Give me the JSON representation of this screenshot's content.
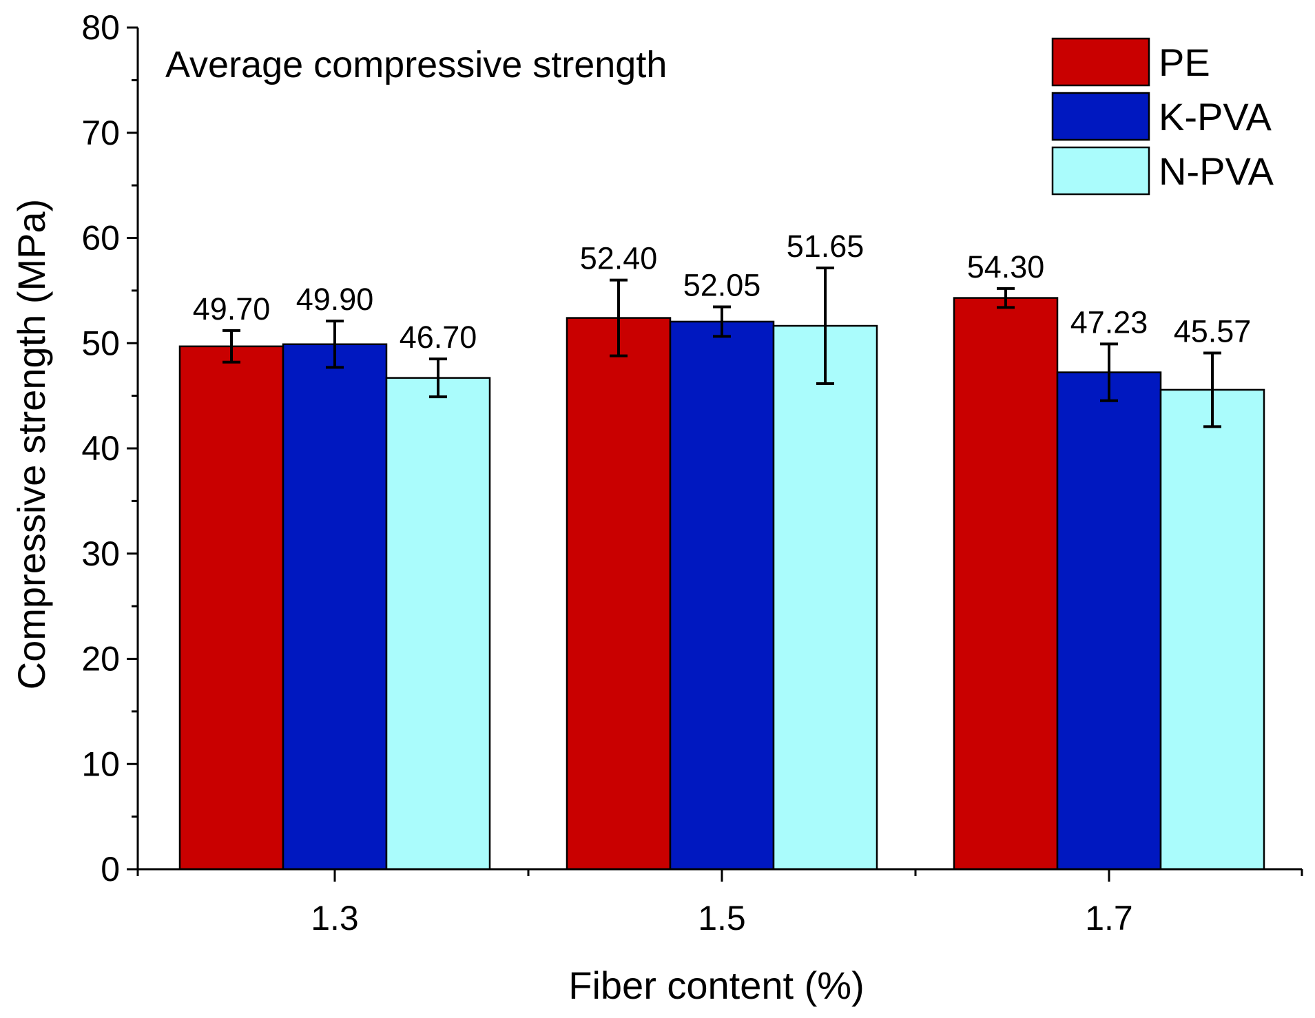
{
  "chart_data": {
    "type": "bar",
    "title": "Average compressive strength",
    "xlabel": "Fiber content (%)",
    "ylabel": "Compressive strength (MPa)",
    "categories": [
      "1.3",
      "1.5",
      "1.7"
    ],
    "ylim": [
      0,
      80
    ],
    "yticks": [
      0,
      10,
      20,
      30,
      40,
      50,
      60,
      70,
      80
    ],
    "yticks_labels": [
      "0",
      "10",
      "20",
      "30",
      "40",
      "50",
      "60",
      "70",
      "80"
    ],
    "grid": false,
    "legend_position": "top-right",
    "series": [
      {
        "name": "PE",
        "color": "#c90000",
        "values": [
          49.7,
          52.4,
          54.3
        ],
        "labels": [
          "49.70",
          "52.40",
          "54.30"
        ],
        "errors": [
          1.5,
          3.6,
          0.9
        ]
      },
      {
        "name": "K-PVA",
        "color": "#0018c0",
        "values": [
          49.9,
          52.05,
          47.23
        ],
        "labels": [
          "49.90",
          "52.05",
          "47.23"
        ],
        "errors": [
          2.2,
          1.4,
          2.7
        ]
      },
      {
        "name": "N-PVA",
        "color": "#aafcfc",
        "values": [
          46.7,
          51.65,
          45.57
        ],
        "labels": [
          "46.70",
          "51.65",
          "45.57"
        ],
        "errors": [
          1.8,
          5.5,
          3.5
        ]
      }
    ]
  }
}
